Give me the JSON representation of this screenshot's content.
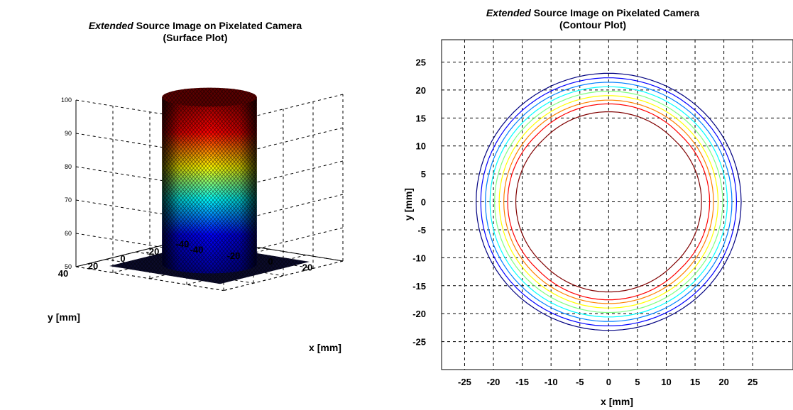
{
  "chart_data": [
    {
      "type": "surface",
      "title_prefix": "Extended",
      "title_rest": " Source Image on Pixelated Camera",
      "subtitle": "(Surface Plot)",
      "xlabel": "x [mm]",
      "ylabel": "y [mm]",
      "xticks": [
        "-40",
        "-20",
        "0",
        "20"
      ],
      "yticks": [
        "40",
        "20",
        "0",
        "-20",
        "-40"
      ],
      "zticks": [
        "50",
        "60",
        "70",
        "80",
        "90",
        "100"
      ],
      "xlim": [
        -40,
        40
      ],
      "ylim": [
        -40,
        40
      ],
      "zlim": [
        50,
        100
      ],
      "grid": true,
      "series": [
        {
          "shape": "flat-top cylinder",
          "center": [
            0,
            0
          ],
          "radius_mm": 20,
          "base_value": 50,
          "peak_value": 100,
          "colormap": [
            "#00008f",
            "#0000ff",
            "#00ffff",
            "#ffff00",
            "#ff0000",
            "#800000"
          ]
        }
      ]
    },
    {
      "type": "contour",
      "title_prefix": "Extended",
      "title_rest": " Source Image on Pixelated Camera",
      "subtitle": "(Contour Plot)",
      "xlabel": "x [mm]",
      "ylabel": "y [mm]",
      "xticks": [
        -25,
        -20,
        -15,
        -10,
        -5,
        0,
        5,
        10,
        15,
        20,
        25
      ],
      "yticks": [
        25,
        20,
        15,
        10,
        5,
        0,
        -5,
        -10,
        -15,
        -20,
        -25
      ],
      "xlim": [
        -29,
        32
      ],
      "ylim": [
        -30,
        29
      ],
      "grid": true,
      "series": [
        {
          "radius": 23.0,
          "color": "#000080"
        },
        {
          "radius": 22.2,
          "color": "#0000ff"
        },
        {
          "radius": 21.4,
          "color": "#0080ff"
        },
        {
          "radius": 20.6,
          "color": "#00ffff"
        },
        {
          "radius": 19.8,
          "color": "#80ff80"
        },
        {
          "radius": 19.0,
          "color": "#ffff00"
        },
        {
          "radius": 18.2,
          "color": "#ff8000"
        },
        {
          "radius": 17.4,
          "color": "#ff0000"
        },
        {
          "radius": 16.0,
          "color": "#800000"
        }
      ]
    }
  ]
}
